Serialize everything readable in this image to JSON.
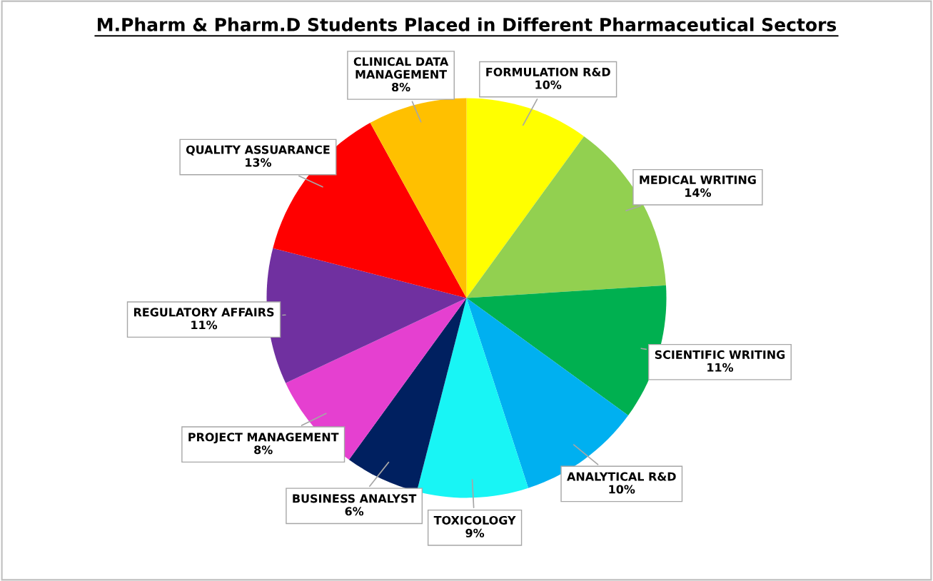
{
  "chart_data": {
    "type": "pie",
    "title": "M.Pharm & Pharm.D Students Placed in Different Pharmaceutical Sectors",
    "categories": [
      "FORMULATION R&D",
      "MEDICAL WRITING",
      "SCIENTIFIC WRITING",
      "ANALYTICAL R&D",
      "TOXICOLOGY",
      "BUSINESS ANALYST",
      "PROJECT MANAGEMENT",
      "REGULATORY AFFAIRS",
      "QUALITY ASSUARANCE",
      "CLINICAL DATA MANAGEMENT"
    ],
    "values": [
      10,
      14,
      11,
      10,
      9,
      6,
      8,
      11,
      13,
      8
    ],
    "value_labels": [
      "10%",
      "14%",
      "11%",
      "10%",
      "9%",
      "6%",
      "8%",
      "11%",
      "13%",
      "8%"
    ],
    "colors": [
      "#ffff00",
      "#92d050",
      "#00b050",
      "#00b0f0",
      "#18f5f5",
      "#002060",
      "#e540d0",
      "#7030a0",
      "#ff0000",
      "#ffc000"
    ],
    "legend": false
  }
}
